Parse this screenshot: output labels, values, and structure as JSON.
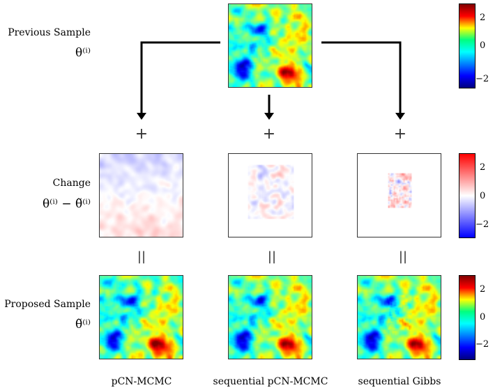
{
  "rows": {
    "previous": {
      "label": "Previous Sample",
      "symbol": "θ⁽ⁱ⁾"
    },
    "change": {
      "label": "Change",
      "symbol": "θ⁽ⁱ⁾ − θ̃⁽ⁱ⁾"
    },
    "proposed": {
      "label": "Proposed Sample",
      "symbol": "θ̃⁽ⁱ⁾"
    }
  },
  "operators": {
    "plus": "+",
    "equals": "||"
  },
  "methods": [
    "pCN-MCMC",
    "sequential pCN-MCMC",
    "sequential Gibbs"
  ],
  "colorbars": {
    "field": {
      "ticks": [
        "2",
        "0",
        "−2"
      ],
      "range": [
        -3,
        3
      ],
      "colormap": "jet"
    },
    "change": {
      "ticks": [
        "2",
        "0",
        "−2"
      ],
      "range": [
        -3,
        3
      ],
      "colormap": "blue-white-red"
    }
  },
  "colors": {
    "arrow": "#000000",
    "border": "#333333"
  }
}
